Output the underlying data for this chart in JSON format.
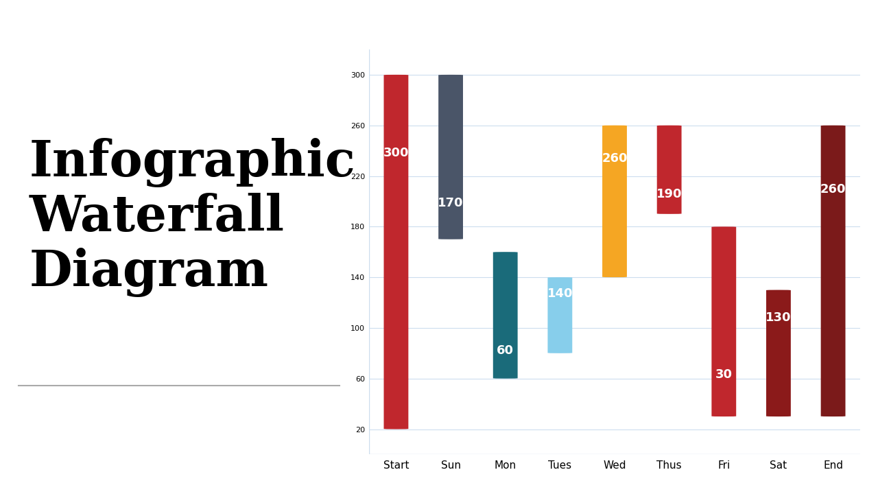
{
  "categories": [
    "Start",
    "Sun",
    "Mon",
    "Tues",
    "Wed",
    "Thus",
    "Fri",
    "Sat",
    "End"
  ],
  "bar_bottoms": [
    20,
    170,
    60,
    80,
    140,
    190,
    30,
    30,
    30
  ],
  "bar_tops": [
    300,
    300,
    160,
    140,
    260,
    260,
    180,
    130,
    260
  ],
  "labels": [
    "300",
    "170",
    "60",
    "140",
    "260",
    "190",
    "30",
    "130",
    "260"
  ],
  "label_positions": [
    "top",
    "bottom",
    "bottom",
    "top",
    "top",
    "bottom",
    "bottom",
    "top",
    "top"
  ],
  "colors": [
    "#C0272D",
    "#4A5568",
    "#1A6B7A",
    "#87CEEB",
    "#F5A623",
    "#C0272D",
    "#C0272D",
    "#8B1A1A",
    "#7B1A1A"
  ],
  "background_color": "#FFFFFF",
  "ylim": [
    0,
    320
  ],
  "yticks": [
    20,
    60,
    100,
    140,
    180,
    220,
    260,
    300
  ],
  "grid_color": "#CCDDEE",
  "bar_width": 0.45,
  "title_text": "Infographic\nWaterfall\nDiagram",
  "title_fontsize": 52,
  "label_fontsize": 13
}
